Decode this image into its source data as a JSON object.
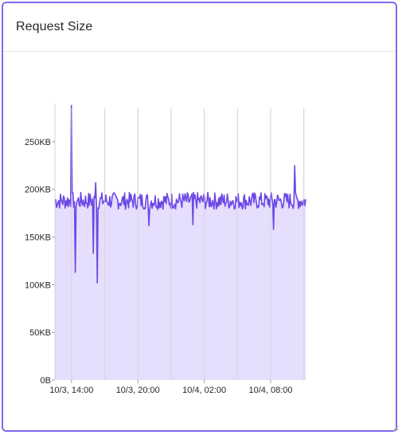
{
  "card": {
    "title": "Request Size"
  },
  "colors": {
    "line": "#6c47e6",
    "area": "#e0d8fb",
    "grid": "#d4d4d8",
    "border": "#7c6cf0"
  },
  "chart_data": {
    "type": "area",
    "title": "Request Size",
    "xlabel": "",
    "ylabel": "",
    "unit": "KB",
    "ylim": [
      0,
      290
    ],
    "xlim": [
      "10/3, 12:30",
      "10/4, 11:10"
    ],
    "y_ticks": [
      {
        "value": 0,
        "label": "0B"
      },
      {
        "value": 50,
        "label": "50KB"
      },
      {
        "value": 100,
        "label": "100KB"
      },
      {
        "value": 150,
        "label": "150KB"
      },
      {
        "value": 200,
        "label": "200KB"
      },
      {
        "value": 250,
        "label": "250KB"
      }
    ],
    "x_ticks": [
      {
        "value": "10/3, 14:00",
        "label": "10/3, 14:00"
      },
      {
        "value": "10/3, 20:00",
        "label": "10/3, 20:00"
      },
      {
        "value": "10/4, 02:00",
        "label": "10/4, 02:00"
      },
      {
        "value": "10/4, 08:00",
        "label": "10/4, 08:00"
      }
    ],
    "x_gridlines": [
      "10/3, 14:00",
      "10/3, 17:00",
      "10/3, 20:00",
      "10/3, 23:00",
      "10/4, 02:00",
      "10/4, 05:00",
      "10/4, 08:00",
      "10/4, 11:00"
    ],
    "grid": true,
    "legend": "none",
    "baseline_kb": 188,
    "noise_kb": 9,
    "spikes": [
      {
        "x": "10/3, 14:00",
        "y": 288
      },
      {
        "x": "10/3, 14:20",
        "y": 113
      },
      {
        "x": "10/3, 16:00",
        "y": 133
      },
      {
        "x": "10/3, 16:20",
        "y": 102
      },
      {
        "x": "10/3, 16:10",
        "y": 207
      },
      {
        "x": "10/3, 21:00",
        "y": 162
      },
      {
        "x": "10/4, 01:00",
        "y": 163
      },
      {
        "x": "10/4, 08:15",
        "y": 158
      },
      {
        "x": "10/4, 10:10",
        "y": 225
      }
    ]
  }
}
